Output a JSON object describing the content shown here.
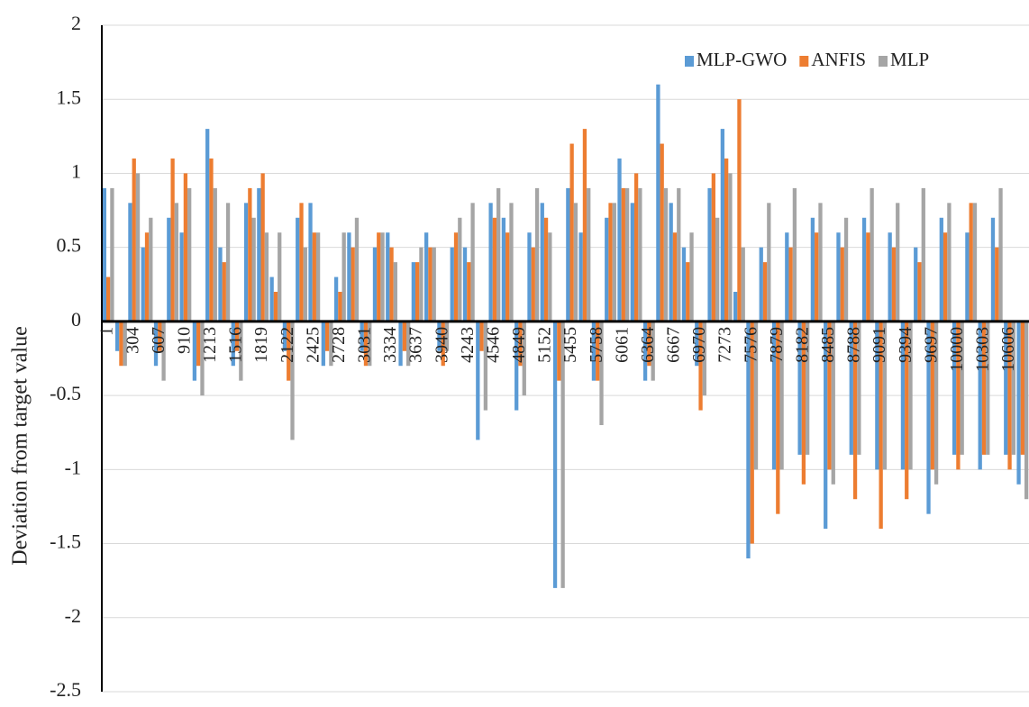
{
  "chart_data": {
    "type": "bar",
    "y_label": "Deviation from target value",
    "categories": [
      "1",
      null,
      "304",
      null,
      "607",
      null,
      "910",
      null,
      "1213",
      null,
      "1516",
      null,
      "1819",
      null,
      "2122",
      null,
      "2425",
      null,
      "2728",
      null,
      "3031",
      null,
      "3334",
      null,
      "3637",
      null,
      "3940",
      null,
      "4243",
      null,
      "4546",
      null,
      "4849",
      null,
      "5152",
      null,
      "5455",
      null,
      "5758",
      null,
      "6061",
      null,
      "6364",
      null,
      "6667",
      null,
      "6970",
      null,
      "7273",
      null,
      "7576",
      null,
      "7879",
      null,
      "8182",
      null,
      "8485",
      null,
      "8788",
      null,
      "9091",
      null,
      "9394",
      null,
      "9697",
      null,
      "10000",
      null,
      "10303",
      null,
      "10606",
      null
    ],
    "series": [
      {
        "name": "MLP-GWO",
        "color": "#5b9bd5",
        "values": [
          0.9,
          -0.2,
          0.8,
          0.5,
          -0.3,
          0.7,
          0.6,
          -0.4,
          1.3,
          0.5,
          -0.3,
          0.8,
          0.9,
          0.3,
          -0.2,
          0.7,
          0.8,
          -0.3,
          0.3,
          0.6,
          -0.2,
          0.5,
          0.6,
          -0.3,
          0.4,
          0.6,
          -0.2,
          0.5,
          0.5,
          -0.8,
          0.8,
          0.7,
          -0.6,
          0.6,
          0.8,
          -1.8,
          0.9,
          0.6,
          -0.4,
          0.7,
          1.1,
          0.8,
          -0.4,
          1.6,
          0.8,
          0.5,
          -0.3,
          0.9,
          1.3,
          0.2,
          -1.6,
          0.5,
          -1.0,
          0.6,
          -0.9,
          0.7,
          -1.4,
          0.6,
          -0.9,
          0.7,
          -1.0,
          0.6,
          -1.0,
          0.5,
          -1.3,
          0.7,
          -0.9,
          0.6,
          -1.0,
          0.7,
          -0.9,
          -1.1
        ]
      },
      {
        "name": "ANFIS",
        "color": "#ed7d31",
        "values": [
          0.3,
          -0.3,
          1.1,
          0.6,
          -0.2,
          1.1,
          1.0,
          -0.3,
          1.1,
          0.4,
          -0.2,
          0.9,
          1.0,
          0.2,
          -0.4,
          0.8,
          0.6,
          -0.2,
          0.2,
          0.5,
          -0.3,
          0.6,
          0.5,
          -0.2,
          0.4,
          0.5,
          -0.3,
          0.6,
          0.4,
          -0.2,
          0.7,
          0.6,
          -0.3,
          0.5,
          0.7,
          -0.4,
          1.2,
          1.3,
          -0.4,
          0.8,
          0.9,
          1.0,
          -0.3,
          1.2,
          0.6,
          0.4,
          -0.6,
          1.0,
          1.1,
          1.5,
          -1.5,
          0.4,
          -1.3,
          0.5,
          -1.1,
          0.6,
          -1.0,
          0.5,
          -1.2,
          0.6,
          -1.4,
          0.5,
          -1.2,
          0.4,
          -1.0,
          0.6,
          -1.0,
          0.8,
          -0.9,
          0.5,
          -1.0,
          -0.9
        ]
      },
      {
        "name": "MLP",
        "color": "#a5a5a5",
        "values": [
          0.9,
          -0.3,
          1.0,
          0.7,
          -0.4,
          0.8,
          0.9,
          -0.5,
          0.9,
          0.8,
          -0.4,
          0.7,
          0.6,
          0.6,
          -0.8,
          0.5,
          0.6,
          -0.3,
          0.6,
          0.7,
          -0.3,
          0.6,
          0.4,
          -0.3,
          0.5,
          0.5,
          -0.2,
          0.7,
          0.8,
          -0.6,
          0.9,
          0.8,
          -0.5,
          0.9,
          0.6,
          -1.8,
          0.8,
          0.9,
          -0.7,
          0.8,
          0.9,
          0.9,
          -0.4,
          0.9,
          0.9,
          0.6,
          -0.5,
          0.7,
          1.0,
          0.5,
          -1.0,
          0.8,
          -1.0,
          0.9,
          -0.9,
          0.8,
          -1.1,
          0.7,
          -0.9,
          0.9,
          -1.0,
          0.8,
          -1.0,
          0.9,
          -1.1,
          0.8,
          -0.9,
          0.8,
          -0.9,
          0.9,
          -0.9,
          -1.2
        ]
      }
    ],
    "ylim": [
      -2.5,
      2
    ],
    "yticks": [
      -2.5,
      -2,
      -1.5,
      -1,
      -0.5,
      0,
      0.5,
      1,
      1.5,
      2
    ],
    "grid": true,
    "legend_position": "top-right"
  }
}
